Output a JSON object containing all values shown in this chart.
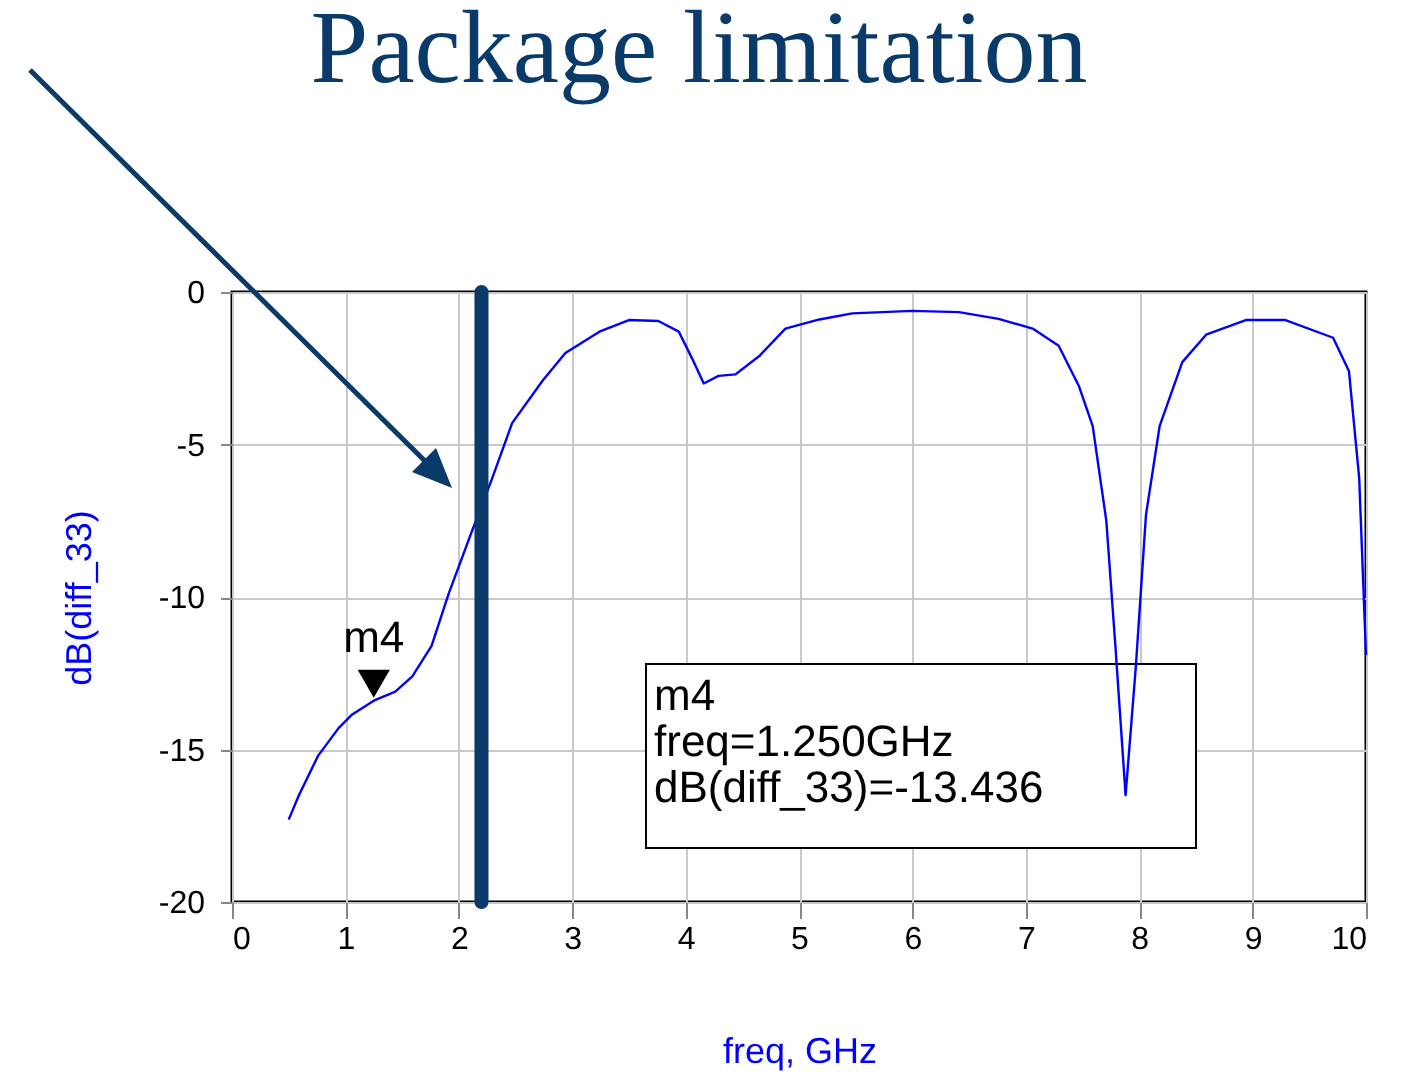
{
  "chart_data": {
    "type": "line",
    "title": "Package limitation",
    "xlabel": "freq, GHz",
    "ylabel": "dB(diff_33)",
    "x": [
      0.5,
      0.59,
      0.76,
      0.94,
      1.06,
      1.25,
      1.44,
      1.59,
      1.76,
      1.91,
      2.12,
      2.29,
      2.47,
      2.74,
      2.94,
      3.24,
      3.5,
      3.76,
      3.94,
      4.06,
      4.16,
      4.29,
      4.44,
      4.65,
      4.88,
      5.18,
      5.47,
      6.0,
      6.41,
      6.76,
      7.06,
      7.29,
      7.47,
      7.59,
      7.71,
      7.79,
      7.88,
      7.97,
      8.06,
      8.18,
      8.38,
      8.59,
      8.94,
      9.29,
      9.71,
      9.85,
      9.94,
      10.0
    ],
    "series": [
      {
        "color": "#0000ff",
        "values": [
          -17.3,
          -16.5,
          -15.2,
          -14.3,
          -13.85,
          -13.4,
          -13.1,
          -12.6,
          -11.6,
          -9.9,
          -7.8,
          -6.15,
          -4.3,
          -2.9,
          -2.0,
          -1.3,
          -0.92,
          -0.95,
          -1.3,
          -2.2,
          -3.0,
          -2.75,
          -2.7,
          -2.1,
          -1.2,
          -0.9,
          -0.7,
          -0.62,
          -0.66,
          -0.88,
          -1.2,
          -1.76,
          -3.1,
          -4.4,
          -7.5,
          -11.6,
          -16.5,
          -12.3,
          -7.3,
          -4.4,
          -2.3,
          -1.4,
          -0.92,
          -0.92,
          -1.5,
          -2.6,
          -6.1,
          -11.9
        ]
      }
    ],
    "xlim": [
      0,
      10
    ],
    "xticks": [
      0,
      1,
      2,
      3,
      4,
      5,
      6,
      7,
      8,
      9,
      10
    ],
    "ylim": [
      -20,
      0
    ],
    "yticks": [
      -20,
      -15,
      -10,
      -5,
      0
    ],
    "grid": true,
    "ref_lines": [
      {
        "axis": "x",
        "value": 2.2,
        "color": "#0a3a6a"
      }
    ],
    "annotations": [
      {
        "text": "m4",
        "x": 1.25,
        "y": -13.436
      },
      "m4",
      "freq=1.250GHz",
      "dB(diff_33)=-13.436"
    ]
  }
}
